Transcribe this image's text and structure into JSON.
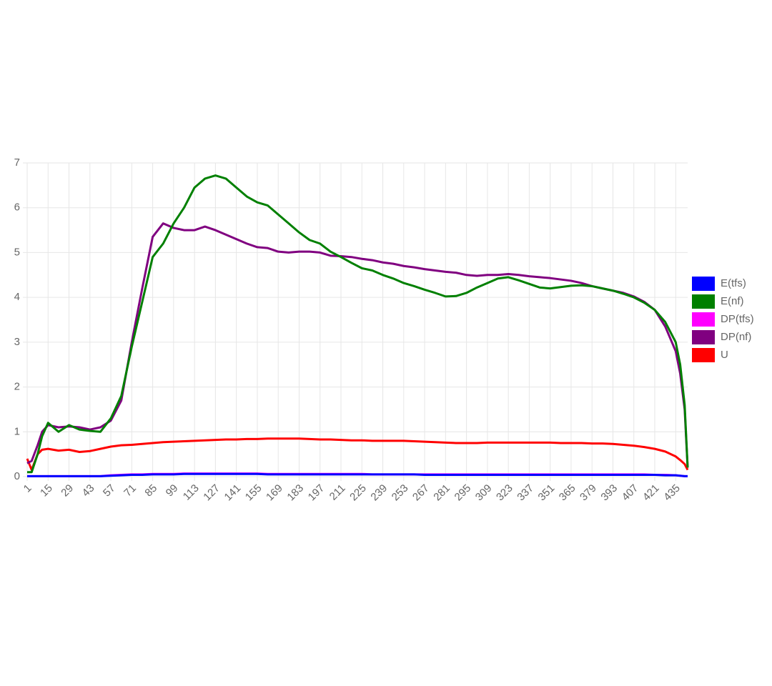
{
  "chart_data": {
    "type": "line",
    "x": [
      1,
      4,
      8,
      11,
      15,
      22,
      29,
      36,
      43,
      50,
      57,
      64,
      71,
      78,
      85,
      92,
      99,
      106,
      113,
      120,
      127,
      134,
      141,
      148,
      155,
      162,
      169,
      176,
      183,
      190,
      197,
      204,
      211,
      218,
      225,
      232,
      239,
      246,
      253,
      260,
      267,
      274,
      281,
      288,
      295,
      302,
      309,
      316,
      323,
      330,
      337,
      344,
      351,
      358,
      365,
      372,
      379,
      386,
      393,
      400,
      407,
      414,
      421,
      428,
      435,
      438,
      441,
      443
    ],
    "series": [
      {
        "name": "E(tfs)",
        "color": "#0000ff",
        "values": [
          0.01,
          0.01,
          0.01,
          0.01,
          0.01,
          0.01,
          0.01,
          0.01,
          0.01,
          0.01,
          0.02,
          0.03,
          0.04,
          0.04,
          0.05,
          0.05,
          0.05,
          0.06,
          0.06,
          0.06,
          0.06,
          0.06,
          0.06,
          0.06,
          0.06,
          0.05,
          0.05,
          0.05,
          0.05,
          0.05,
          0.05,
          0.05,
          0.05,
          0.05,
          0.05,
          0.05,
          0.05,
          0.05,
          0.05,
          0.05,
          0.04,
          0.04,
          0.04,
          0.04,
          0.04,
          0.04,
          0.04,
          0.04,
          0.04,
          0.04,
          0.04,
          0.04,
          0.04,
          0.04,
          0.04,
          0.04,
          0.04,
          0.04,
          0.04,
          0.04,
          0.04,
          0.04,
          0.04,
          0.03,
          0.03,
          0.02,
          0.01,
          0.01
        ]
      },
      {
        "name": "E(nf)",
        "color": "#008000",
        "values": [
          0.1,
          0.1,
          0.5,
          0.9,
          1.2,
          1.0,
          1.15,
          1.05,
          1.02,
          1.0,
          1.3,
          1.8,
          2.9,
          3.9,
          4.9,
          5.2,
          5.65,
          6.0,
          6.45,
          6.65,
          6.72,
          6.65,
          6.45,
          6.25,
          6.12,
          6.05,
          5.85,
          5.65,
          5.45,
          5.28,
          5.2,
          5.02,
          4.9,
          4.77,
          4.65,
          4.6,
          4.5,
          4.42,
          4.32,
          4.25,
          4.17,
          4.1,
          4.02,
          4.03,
          4.1,
          4.22,
          4.32,
          4.42,
          4.45,
          4.38,
          4.3,
          4.22,
          4.2,
          4.23,
          4.26,
          4.27,
          4.25,
          4.2,
          4.15,
          4.08,
          4.0,
          3.88,
          3.72,
          3.45,
          3.0,
          2.5,
          1.6,
          0.2
        ]
      },
      {
        "name": "DP(tfs)",
        "color": "#ff00ff",
        "values": [
          0.01,
          0.01,
          0.01,
          0.01,
          0.01,
          0.01,
          0.01,
          0.01,
          0.01,
          0.01,
          0.03,
          0.04,
          0.05,
          0.05,
          0.06,
          0.06,
          0.06,
          0.07,
          0.07,
          0.07,
          0.07,
          0.07,
          0.07,
          0.07,
          0.07,
          0.06,
          0.06,
          0.06,
          0.06,
          0.06,
          0.06,
          0.06,
          0.06,
          0.06,
          0.06,
          0.05,
          0.05,
          0.05,
          0.05,
          0.05,
          0.05,
          0.05,
          0.05,
          0.05,
          0.05,
          0.05,
          0.05,
          0.05,
          0.05,
          0.05,
          0.05,
          0.05,
          0.05,
          0.05,
          0.05,
          0.05,
          0.05,
          0.05,
          0.05,
          0.05,
          0.05,
          0.05,
          0.04,
          0.04,
          0.03,
          0.02,
          0.01,
          0.01
        ]
      },
      {
        "name": "DP(nf)",
        "color": "#800080",
        "values": [
          0.3,
          0.35,
          0.7,
          1.0,
          1.15,
          1.1,
          1.12,
          1.1,
          1.05,
          1.1,
          1.25,
          1.7,
          3.0,
          4.2,
          5.35,
          5.65,
          5.55,
          5.5,
          5.5,
          5.58,
          5.5,
          5.4,
          5.3,
          5.2,
          5.12,
          5.1,
          5.02,
          5.0,
          5.02,
          5.02,
          5.0,
          4.93,
          4.92,
          4.9,
          4.86,
          4.83,
          4.78,
          4.75,
          4.7,
          4.67,
          4.63,
          4.6,
          4.57,
          4.55,
          4.5,
          4.48,
          4.5,
          4.5,
          4.52,
          4.5,
          4.47,
          4.45,
          4.43,
          4.4,
          4.37,
          4.32,
          4.25,
          4.2,
          4.15,
          4.1,
          4.02,
          3.9,
          3.72,
          3.35,
          2.8,
          2.3,
          1.5,
          0.2
        ]
      },
      {
        "name": "U",
        "color": "#ff0000",
        "values": [
          0.4,
          0.15,
          0.5,
          0.6,
          0.62,
          0.58,
          0.6,
          0.55,
          0.57,
          0.62,
          0.67,
          0.7,
          0.71,
          0.73,
          0.75,
          0.77,
          0.78,
          0.79,
          0.8,
          0.81,
          0.82,
          0.83,
          0.83,
          0.84,
          0.84,
          0.85,
          0.85,
          0.85,
          0.85,
          0.84,
          0.83,
          0.83,
          0.82,
          0.81,
          0.81,
          0.8,
          0.8,
          0.8,
          0.8,
          0.79,
          0.78,
          0.77,
          0.76,
          0.75,
          0.75,
          0.75,
          0.76,
          0.76,
          0.76,
          0.76,
          0.76,
          0.76,
          0.76,
          0.75,
          0.75,
          0.75,
          0.74,
          0.74,
          0.73,
          0.71,
          0.69,
          0.66,
          0.62,
          0.56,
          0.45,
          0.37,
          0.28,
          0.15
        ]
      }
    ],
    "xlim": [
      1,
      443
    ],
    "xticks": [
      1,
      15,
      29,
      43,
      57,
      71,
      85,
      99,
      113,
      127,
      141,
      155,
      169,
      183,
      197,
      211,
      225,
      239,
      253,
      267,
      281,
      295,
      309,
      323,
      337,
      351,
      365,
      379,
      393,
      407,
      421,
      435
    ],
    "ylim": [
      0,
      7
    ],
    "yticks": [
      0,
      1,
      2,
      3,
      4,
      5,
      6,
      7
    ],
    "grid": true,
    "legend": "right"
  }
}
